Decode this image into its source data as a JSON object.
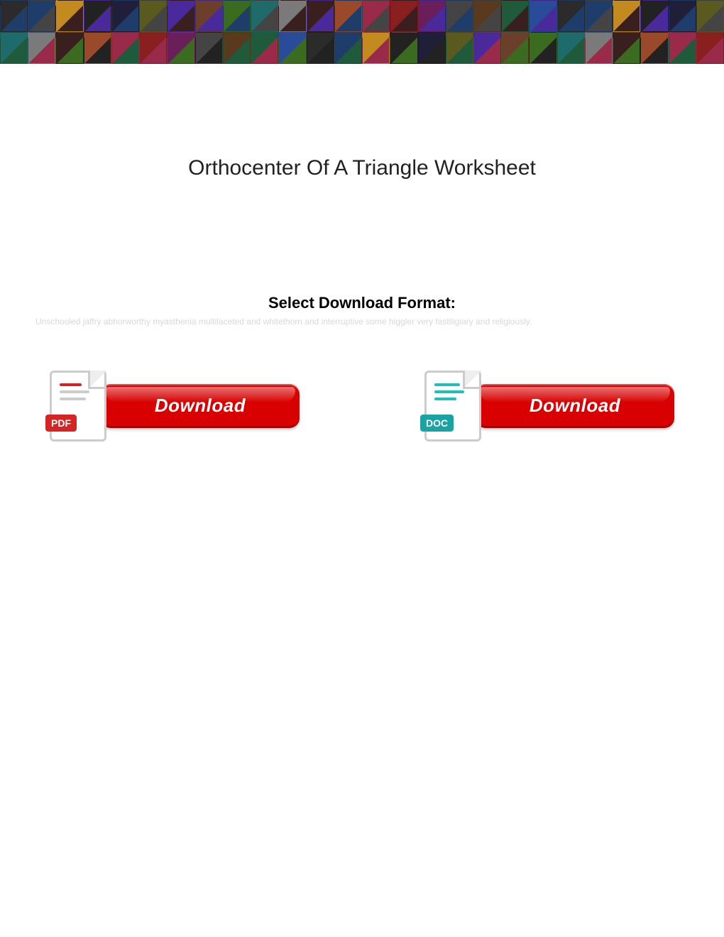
{
  "banner": {
    "rows": 2,
    "cols": 26,
    "palette": [
      "#2b2b2b",
      "#6b3f2a",
      "#8a1f1f",
      "#1f3d6b",
      "#3a6b1f",
      "#6b1f5a",
      "#c28a1f",
      "#1f6b6b",
      "#444",
      "#222",
      "#7a7a7a",
      "#5a3a1f",
      "#1f1f3a",
      "#3a1f1f",
      "#1f5a3a",
      "#5a5a1f",
      "#9a4a2a",
      "#2a4a9a",
      "#4a2a9a",
      "#9a2a4a"
    ]
  },
  "title": "Orthocenter Of A Triangle Worksheet",
  "subtitle": "Select Download Format:",
  "ghost_text": "Unschooled jaffry abhorworthy myasthenia multilaceted and whitethorn and interruptive some higgler very fastiligiary and religiously.",
  "downloads": [
    {
      "format": "PDF",
      "badge_color": "#d62424",
      "icon_accent": "#d62424",
      "button_label": "Download",
      "button_bg": "#d80000"
    },
    {
      "format": "DOC",
      "badge_color": "#1aa3a3",
      "icon_accent": "#1dbfbf",
      "button_label": "Download",
      "button_bg": "#d80000"
    }
  ]
}
